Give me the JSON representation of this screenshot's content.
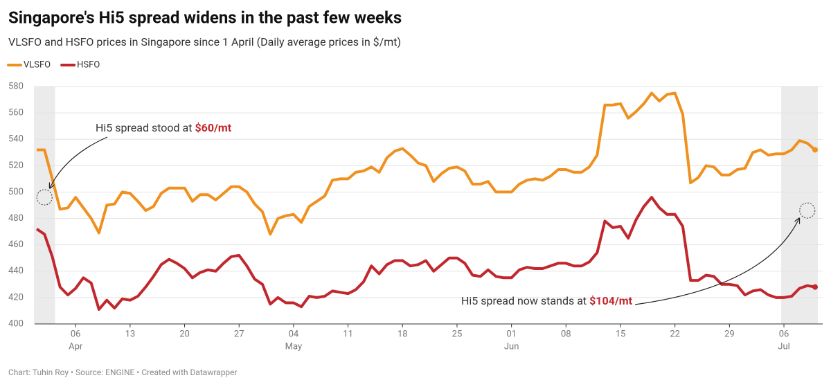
{
  "chart_data": {
    "type": "line",
    "title": "Singapore's Hi5 spread widens in the past few weeks",
    "subtitle": "VLSFO and HSFO prices in Singapore since 1 April (Daily average prices in $/mt)",
    "footer": "Chart: Tuhin Roy • Source: ENGINE • Created with Datawrapper",
    "x": [
      "Apr 01",
      "Apr 02",
      "Apr 03",
      "Apr 04",
      "Apr 05",
      "Apr 06",
      "Apr 07",
      "Apr 08",
      "Apr 09",
      "Apr 10",
      "Apr 11",
      "Apr 12",
      "Apr 13",
      "Apr 14",
      "Apr 15",
      "Apr 16",
      "Apr 17",
      "Apr 18",
      "Apr 19",
      "Apr 20",
      "Apr 21",
      "Apr 22",
      "Apr 23",
      "Apr 24",
      "Apr 25",
      "Apr 26",
      "Apr 27",
      "Apr 28",
      "Apr 29",
      "Apr 30",
      "May 01",
      "May 02",
      "May 03",
      "May 04",
      "May 05",
      "May 06",
      "May 07",
      "May 08",
      "May 09",
      "May 10",
      "May 11",
      "May 12",
      "May 13",
      "May 14",
      "May 15",
      "May 16",
      "May 17",
      "May 18",
      "May 19",
      "May 20",
      "May 21",
      "May 22",
      "May 23",
      "May 24",
      "May 25",
      "May 26",
      "May 27",
      "May 28",
      "May 29",
      "May 30",
      "May 31",
      "Jun 01",
      "Jun 02",
      "Jun 03",
      "Jun 04",
      "Jun 05",
      "Jun 06",
      "Jun 07",
      "Jun 08",
      "Jun 09",
      "Jun 10",
      "Jun 11",
      "Jun 12",
      "Jun 13",
      "Jun 14",
      "Jun 15",
      "Jun 16",
      "Jun 17",
      "Jun 18",
      "Jun 19",
      "Jun 20",
      "Jun 21",
      "Jun 22",
      "Jun 23",
      "Jun 24",
      "Jun 25",
      "Jun 26",
      "Jun 27",
      "Jun 28",
      "Jun 29",
      "Jun 30",
      "Jul 01",
      "Jul 02",
      "Jul 03",
      "Jul 04",
      "Jul 05",
      "Jul 06",
      "Jul 07",
      "Jul 08",
      "Jul 09",
      "Jul 10"
    ],
    "series": [
      {
        "name": "VLSFO",
        "color": "#f0901e",
        "values": [
          532,
          532,
          510,
          487,
          488,
          496,
          488,
          480,
          469,
          490,
          491,
          500,
          499,
          493,
          486,
          489,
          499,
          503,
          503,
          503,
          493,
          498,
          498,
          494,
          499,
          504,
          504,
          500,
          491,
          485,
          468,
          480,
          482,
          483,
          477,
          489,
          493,
          497,
          509,
          510,
          510,
          515,
          516,
          519,
          515,
          526,
          531,
          533,
          528,
          522,
          520,
          508,
          514,
          518,
          519,
          516,
          506,
          506,
          508,
          500,
          500,
          500,
          506,
          509,
          510,
          509,
          512,
          517,
          517,
          515,
          515,
          519,
          528,
          566,
          566,
          567,
          556,
          561,
          567,
          575,
          569,
          574,
          575,
          559,
          507,
          511,
          520,
          519,
          513,
          513,
          517,
          518,
          530,
          532,
          528,
          529,
          529,
          532,
          539,
          537,
          532
        ]
      },
      {
        "name": "HSFO",
        "color": "#c1272d",
        "values": [
          472,
          468,
          451,
          428,
          422,
          427,
          435,
          431,
          411,
          418,
          412,
          419,
          418,
          421,
          428,
          436,
          445,
          449,
          446,
          442,
          435,
          439,
          441,
          440,
          446,
          451,
          452,
          444,
          434,
          430,
          415,
          420,
          416,
          416,
          413,
          421,
          420,
          421,
          425,
          424,
          423,
          426,
          432,
          444,
          438,
          445,
          448,
          448,
          444,
          445,
          448,
          440,
          445,
          450,
          450,
          446,
          437,
          436,
          441,
          436,
          435,
          435,
          441,
          443,
          442,
          442,
          444,
          446,
          446,
          444,
          444,
          447,
          454,
          478,
          473,
          474,
          465,
          479,
          489,
          496,
          488,
          483,
          483,
          474,
          433,
          433,
          437,
          436,
          430,
          430,
          429,
          422,
          425,
          426,
          422,
          420,
          420,
          421,
          427,
          429,
          428
        ]
      }
    ],
    "xlim": [
      "Apr 01",
      "Jul 10"
    ],
    "ylim": [
      400,
      580
    ],
    "yticks": [
      400,
      420,
      440,
      460,
      480,
      500,
      520,
      540,
      560,
      580
    ],
    "grid": true,
    "xticks": [
      {
        "value": "Apr 06",
        "label": "06"
      },
      {
        "value": "Apr 13",
        "label": "13"
      },
      {
        "value": "Apr 20",
        "label": "20"
      },
      {
        "value": "Apr 27",
        "label": "27"
      },
      {
        "value": "May 04",
        "label": "04"
      },
      {
        "value": "May 11",
        "label": "11"
      },
      {
        "value": "May 18",
        "label": "18"
      },
      {
        "value": "May 25",
        "label": "25"
      },
      {
        "value": "Jun 01",
        "label": "01"
      },
      {
        "value": "Jun 08",
        "label": "08"
      },
      {
        "value": "Jun 15",
        "label": "15"
      },
      {
        "value": "Jun 22",
        "label": "22"
      },
      {
        "value": "Jun 29",
        "label": "29"
      },
      {
        "value": "Jul 06",
        "label": "06"
      }
    ],
    "month_labels": [
      {
        "value": "Apr 06",
        "label": "Apr"
      },
      {
        "value": "May 04",
        "label": "May"
      },
      {
        "value": "Jun 01",
        "label": "Jun"
      },
      {
        "value": "Jul 06",
        "label": "Jul"
      }
    ],
    "highlight_ranges": [
      [
        "Apr 01",
        "Apr 03"
      ],
      [
        "Jul 06",
        "Jul 10"
      ]
    ],
    "annotations": [
      {
        "text": "Hi5 spread stood at ",
        "highlight": "$60/mt",
        "at": "Apr 02",
        "value": 496
      },
      {
        "text": "Hi5 spread now stands at ",
        "highlight": "$104/mt",
        "at": "Jul 09",
        "value": 486
      }
    ]
  }
}
